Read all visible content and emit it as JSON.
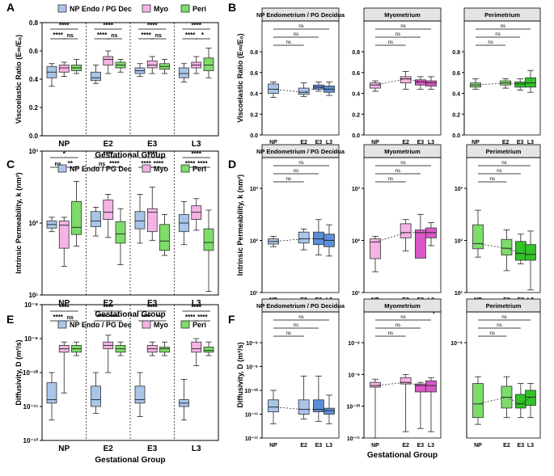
{
  "colors": {
    "endo": "#a9c5ea",
    "myo": "#f4b3e4",
    "peri": "#7edc6a",
    "endo_dark": "#5b8fd9",
    "myo_dark": "#d957c6",
    "peri_dark": "#33c22a"
  },
  "legend": {
    "endo": "NP Endo / PG Dec",
    "myo": "Myo",
    "peri": "Peri"
  },
  "groups": [
    "NP",
    "E2",
    "E3",
    "L3"
  ],
  "xlabel": "Gestational Group",
  "subpanel_titles": [
    "NP Endometrium / PG Decidua",
    "Myometrium",
    "Perimetrium"
  ],
  "chart_data": [
    {
      "panel": "A",
      "type": "box",
      "scale": "linear",
      "ylabel": "Viscoelastic Ratio (E∞/E₀)",
      "ylim": [
        0.0,
        0.8
      ],
      "ticks": [
        "0.0",
        "0.2",
        "0.4",
        "0.6",
        "0.8"
      ],
      "tick_values": [
        0,
        0.2,
        0.4,
        0.6,
        0.8
      ],
      "series": [
        {
          "name": "NP Endo / PG Dec",
          "boxes": [
            [
              0.35,
              0.41,
              0.45,
              0.49,
              0.51
            ],
            [
              0.37,
              0.39,
              0.41,
              0.45,
              0.5
            ],
            [
              0.42,
              0.44,
              0.46,
              0.48,
              0.51
            ],
            [
              0.38,
              0.41,
              0.44,
              0.48,
              0.51
            ]
          ]
        },
        {
          "name": "Myo",
          "boxes": [
            [
              0.42,
              0.45,
              0.48,
              0.5,
              0.52
            ],
            [
              0.44,
              0.5,
              0.54,
              0.56,
              0.6
            ],
            [
              0.44,
              0.48,
              0.5,
              0.53,
              0.56
            ],
            [
              0.44,
              0.48,
              0.5,
              0.52,
              0.56
            ]
          ]
        },
        {
          "name": "Peri",
          "boxes": [
            [
              0.44,
              0.46,
              0.48,
              0.5,
              0.54
            ],
            [
              0.45,
              0.48,
              0.5,
              0.52,
              0.54
            ],
            [
              0.44,
              0.47,
              0.49,
              0.51,
              0.54
            ],
            [
              0.41,
              0.46,
              0.5,
              0.55,
              0.62
            ]
          ]
        }
      ],
      "significance": [
        {
          "rows": [
            [
              "****",
              0,
              2
            ],
            [
              "****",
              0,
              1
            ],
            [
              "ns",
              1,
              2
            ]
          ]
        },
        {
          "rows": [
            [
              "****",
              0,
              2
            ],
            [
              "****",
              0,
              1
            ],
            [
              "ns",
              1,
              2
            ]
          ]
        },
        {
          "rows": [
            [
              "****",
              0,
              2
            ],
            [
              "****",
              0,
              1
            ],
            [
              "ns",
              1,
              2
            ]
          ]
        },
        {
          "rows": [
            [
              "****",
              0,
              2
            ],
            [
              "****",
              0,
              1
            ],
            [
              "*",
              1,
              2
            ]
          ]
        }
      ]
    },
    {
      "panel": "B",
      "type": "box",
      "scale": "linear",
      "ylabel": "Viscoelastic Ratio (E∞/E₀)",
      "ylim": [
        0.0,
        0.8
      ],
      "ticks": [
        "0.0",
        "0.2",
        "0.4",
        "0.6",
        "0.8"
      ],
      "tick_values": [
        0,
        0.2,
        0.4,
        0.6,
        0.8
      ],
      "subpanels": [
        {
          "title": "NP Endometrium / PG Decidua",
          "boxes": [
            [
              0.36,
              0.4,
              0.44,
              0.49,
              0.51
            ],
            [
              0.37,
              0.39,
              0.41,
              0.45,
              0.5
            ],
            [
              0.42,
              0.44,
              0.46,
              0.48,
              0.51
            ],
            [
              0.38,
              0.41,
              0.44,
              0.47,
              0.51
            ]
          ],
          "brackets": [
            "ns",
            "ns",
            "ns"
          ]
        },
        {
          "title": "Myometrium",
          "boxes": [
            [
              0.42,
              0.45,
              0.48,
              0.5,
              0.52
            ],
            [
              0.44,
              0.5,
              0.54,
              0.56,
              0.61
            ],
            [
              0.44,
              0.48,
              0.51,
              0.53,
              0.56
            ],
            [
              0.44,
              0.47,
              0.5,
              0.52,
              0.56
            ]
          ],
          "brackets": [
            "ns",
            "ns",
            "ns"
          ]
        },
        {
          "title": "Perimetrium",
          "boxes": [
            [
              0.44,
              0.46,
              0.48,
              0.5,
              0.54
            ],
            [
              0.45,
              0.48,
              0.5,
              0.52,
              0.54
            ],
            [
              0.43,
              0.46,
              0.49,
              0.51,
              0.54
            ],
            [
              0.41,
              0.46,
              0.5,
              0.55,
              0.62
            ]
          ],
          "brackets": [
            "ns",
            "ns",
            "ns"
          ]
        }
      ]
    },
    {
      "panel": "C",
      "type": "box",
      "scale": "log",
      "ylabel": "Intrinsic Permeability, k (nm²)",
      "ylim": [
        1,
        3
      ],
      "ticks": [
        "10¹",
        "10²",
        "10³"
      ],
      "tick_values": [
        1,
        2,
        3
      ],
      "series": [
        {
          "name": "NP Endo / PG Dec",
          "boxes": [
            [
              1.88,
              1.93,
              1.98,
              2.03,
              2.08
            ],
            [
              1.82,
              1.95,
              2.03,
              2.16,
              2.22
            ],
            [
              1.72,
              1.92,
              2.03,
              2.16,
              2.4
            ],
            [
              1.7,
              1.88,
              2.0,
              2.12,
              2.3
            ]
          ]
        },
        {
          "name": "Myo",
          "boxes": [
            [
              1.4,
              1.65,
              1.97,
              2.03,
              2.08
            ],
            [
              1.8,
              2.05,
              2.15,
              2.32,
              2.4
            ],
            [
              1.76,
              1.88,
              2.15,
              2.2,
              2.5
            ],
            [
              1.9,
              2.05,
              2.15,
              2.24,
              2.34
            ]
          ]
        },
        {
          "name": "Peri",
          "boxes": [
            [
              1.68,
              1.84,
              1.94,
              2.3,
              2.58
            ],
            [
              1.42,
              1.72,
              1.85,
              2.02,
              2.2
            ],
            [
              1.55,
              1.62,
              1.75,
              1.98,
              2.12
            ],
            [
              1.05,
              1.62,
              1.73,
              1.92,
              2.18
            ]
          ]
        }
      ],
      "significance": [
        {
          "rows": [
            [
              "*",
              0,
              2
            ],
            [
              "ns",
              0,
              1
            ],
            [
              "**",
              1,
              2
            ]
          ]
        },
        {
          "rows": [
            [
              "****",
              0,
              2
            ],
            [
              "ns",
              0,
              1
            ],
            [
              "****",
              1,
              2
            ]
          ]
        },
        {
          "rows": [
            [
              "****",
              0,
              2
            ],
            [
              "****",
              0,
              1
            ],
            [
              "****",
              1,
              2
            ]
          ]
        },
        {
          "rows": [
            [
              "****",
              0,
              2
            ],
            [
              "****",
              0,
              1
            ],
            [
              "****",
              1,
              2
            ]
          ]
        }
      ]
    },
    {
      "panel": "D",
      "type": "box",
      "scale": "log",
      "ylabel": "Intrinsic Permeability, k (nm²)",
      "ylim": [
        1,
        3
      ],
      "ticks": [
        "10¹",
        "10²",
        "10³"
      ],
      "tick_values": [
        1,
        2,
        3
      ],
      "subpanels": [
        {
          "title": "NP Endometrium / PG Decidua",
          "boxes": [
            [
              1.88,
              1.93,
              1.98,
              2.03,
              2.08
            ],
            [
              1.82,
              1.95,
              2.03,
              2.16,
              2.22
            ],
            [
              1.72,
              1.92,
              2.03,
              2.16,
              2.4
            ],
            [
              1.7,
              1.88,
              2.0,
              2.12,
              2.3
            ]
          ],
          "brackets": [
            "ns",
            "ns",
            "ns"
          ]
        },
        {
          "title": "Myometrium",
          "boxes": [
            [
              1.4,
              1.65,
              1.97,
              2.03,
              2.08
            ],
            [
              1.8,
              2.05,
              2.15,
              2.32,
              2.4
            ],
            [
              1.76,
              1.66,
              2.15,
              2.2,
              2.5
            ],
            [
              1.9,
              2.05,
              2.15,
              2.24,
              2.34
            ]
          ],
          "brackets": [
            "ns",
            "ns",
            "ns"
          ]
        },
        {
          "title": "Perimetrium",
          "boxes": [
            [
              1.68,
              1.84,
              1.94,
              2.3,
              2.58
            ],
            [
              1.42,
              1.72,
              1.85,
              2.02,
              2.2
            ],
            [
              1.55,
              1.62,
              1.75,
              1.98,
              2.12
            ],
            [
              1.05,
              1.62,
              1.73,
              1.92,
              2.18
            ]
          ],
          "brackets": [
            "ns",
            "ns",
            "ns"
          ]
        }
      ]
    },
    {
      "panel": "E",
      "type": "box",
      "scale": "log",
      "ylabel": "Diffusivity, D (m²/s)",
      "ylim": [
        -12,
        -8
      ],
      "ticks": [
        "10⁻¹²",
        "10⁻¹¹",
        "10⁻¹⁰",
        "10⁻⁹",
        "10⁻⁸"
      ],
      "tick_values": [
        -12,
        -11,
        -10,
        -9,
        -8
      ],
      "series": [
        {
          "name": "NP Endo / PG Dec",
          "boxes": [
            [
              -11.4,
              -10.9,
              -10.8,
              -10.3,
              -10.0
            ],
            [
              -11.2,
              -11.0,
              -10.8,
              -10.4,
              -10.0
            ],
            [
              -11.3,
              -10.9,
              -10.8,
              -10.4,
              -10.0
            ],
            [
              -11.4,
              -11.0,
              -10.9,
              -10.8,
              -10.2
            ]
          ]
        },
        {
          "name": "Myo",
          "boxes": [
            [
              -10.6,
              -9.4,
              -9.3,
              -9.2,
              -9.1
            ],
            [
              -10.0,
              -9.3,
              -9.2,
              -9.1,
              -8.9
            ],
            [
              -9.5,
              -9.4,
              -9.3,
              -9.2,
              -9.1
            ],
            [
              -9.8,
              -9.4,
              -9.3,
              -9.1,
              -9.0
            ]
          ]
        },
        {
          "name": "Peri",
          "boxes": [
            [
              -9.5,
              -9.4,
              -9.3,
              -9.2,
              -9.1
            ],
            [
              -9.5,
              -9.4,
              -9.3,
              -9.2,
              -9.1
            ],
            [
              -9.5,
              -9.4,
              -9.3,
              -9.25,
              -9.1
            ],
            [
              -9.5,
              -9.4,
              -9.35,
              -9.25,
              -9.1
            ]
          ]
        }
      ],
      "significance": [
        {
          "rows": [
            [
              "****",
              0,
              2
            ],
            [
              "****",
              0,
              1
            ],
            [
              "ns",
              1,
              2
            ]
          ]
        },
        {
          "rows": [
            [
              "****",
              0,
              2
            ],
            [
              "****",
              0,
              1
            ],
            [
              "****",
              1,
              2
            ]
          ]
        },
        {
          "rows": [
            [
              "****",
              0,
              2
            ],
            [
              "****",
              0,
              1
            ],
            [
              "**",
              1,
              2
            ]
          ]
        },
        {
          "rows": [
            [
              "****",
              0,
              2
            ],
            [
              "****",
              0,
              1
            ],
            [
              "****",
              1,
              2
            ]
          ]
        }
      ]
    },
    {
      "panel": "F",
      "type": "box",
      "scale": "log",
      "ylabel": "Diffusivity, D (m²/s)",
      "subpanels": [
        {
          "title": "NP Endometrium / PG Decidua",
          "ylim": [
            -12,
            -8
          ],
          "ticks": [
            "10⁻¹²",
            "10⁻¹¹",
            "10⁻¹⁰",
            "10⁻⁹",
            "10⁻⁸"
          ],
          "tick_values": [
            -12,
            -11,
            -10,
            -9,
            -8
          ],
          "boxes": [
            [
              -11.4,
              -10.9,
              -10.7,
              -10.4,
              -10.0
            ],
            [
              -11.2,
              -11.0,
              -10.8,
              -10.4,
              -9.4
            ],
            [
              -11.3,
              -10.9,
              -10.8,
              -10.4,
              -9.4
            ],
            [
              -11.4,
              -11.0,
              -10.85,
              -10.75,
              -10.2
            ]
          ],
          "brackets": [
            "ns",
            "ns",
            "ns"
          ]
        },
        {
          "title": "Myometrium",
          "ylim": [
            -11,
            -8
          ],
          "ticks": [
            "10⁻¹¹",
            "10⁻¹⁰",
            "10⁻⁹",
            "10⁻⁸"
          ],
          "tick_values": [
            -11,
            -10,
            -9,
            -8
          ],
          "boxes": [
            [
              -11.0,
              -9.4,
              -9.35,
              -9.25,
              -9.15
            ],
            [
              -10.8,
              -9.3,
              -9.25,
              -9.1,
              -9.0
            ],
            [
              -10.7,
              -9.55,
              -9.35,
              -9.3,
              -9.25
            ],
            [
              -10.8,
              -9.55,
              -9.35,
              -9.2,
              -9.1
            ]
          ],
          "brackets": [
            "ns",
            "ns",
            "ns"
          ]
        },
        {
          "title": "Perimetrium",
          "ylim": [
            -9.7,
            -9.0
          ],
          "ticks": [
            "10⁻⁹"
          ],
          "tick_values": [
            -9
          ],
          "boxes": [
            [
              -9.6,
              -9.55,
              -9.45,
              -9.3,
              -9.25
            ],
            [
              -9.55,
              -9.48,
              -9.4,
              -9.32,
              -9.25
            ],
            [
              -9.55,
              -9.48,
              -9.45,
              -9.38,
              -9.3
            ],
            [
              -9.55,
              -9.46,
              -9.4,
              -9.35,
              -9.3
            ]
          ],
          "brackets": [
            "ns",
            "ns",
            "ns"
          ]
        }
      ]
    }
  ]
}
